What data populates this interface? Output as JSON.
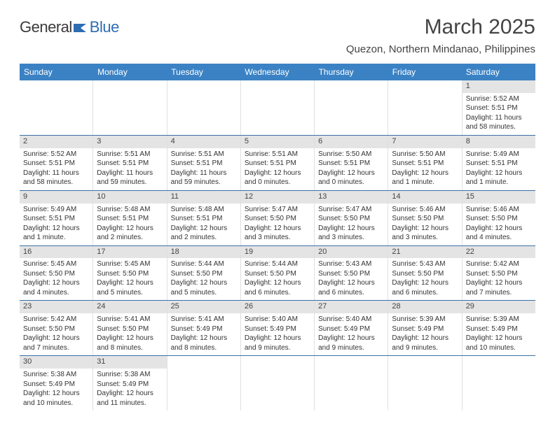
{
  "logo": {
    "text1": "General",
    "text2": "Blue"
  },
  "title": "March 2025",
  "location": "Quezon, Northern Mindanao, Philippines",
  "day_headers": [
    "Sunday",
    "Monday",
    "Tuesday",
    "Wednesday",
    "Thursday",
    "Friday",
    "Saturday"
  ],
  "colors": {
    "header_bg": "#3b82c4",
    "week_divider": "#3b6fa8",
    "daynum_bg": "#e4e4e4",
    "text": "#333333"
  },
  "weeks": [
    [
      {
        "day": null
      },
      {
        "day": null
      },
      {
        "day": null
      },
      {
        "day": null
      },
      {
        "day": null
      },
      {
        "day": null
      },
      {
        "day": 1,
        "sunrise": "Sunrise: 5:52 AM",
        "sunset": "Sunset: 5:51 PM",
        "daylight": "Daylight: 11 hours and 58 minutes."
      }
    ],
    [
      {
        "day": 2,
        "sunrise": "Sunrise: 5:52 AM",
        "sunset": "Sunset: 5:51 PM",
        "daylight": "Daylight: 11 hours and 58 minutes."
      },
      {
        "day": 3,
        "sunrise": "Sunrise: 5:51 AM",
        "sunset": "Sunset: 5:51 PM",
        "daylight": "Daylight: 11 hours and 59 minutes."
      },
      {
        "day": 4,
        "sunrise": "Sunrise: 5:51 AM",
        "sunset": "Sunset: 5:51 PM",
        "daylight": "Daylight: 11 hours and 59 minutes."
      },
      {
        "day": 5,
        "sunrise": "Sunrise: 5:51 AM",
        "sunset": "Sunset: 5:51 PM",
        "daylight": "Daylight: 12 hours and 0 minutes."
      },
      {
        "day": 6,
        "sunrise": "Sunrise: 5:50 AM",
        "sunset": "Sunset: 5:51 PM",
        "daylight": "Daylight: 12 hours and 0 minutes."
      },
      {
        "day": 7,
        "sunrise": "Sunrise: 5:50 AM",
        "sunset": "Sunset: 5:51 PM",
        "daylight": "Daylight: 12 hours and 1 minute."
      },
      {
        "day": 8,
        "sunrise": "Sunrise: 5:49 AM",
        "sunset": "Sunset: 5:51 PM",
        "daylight": "Daylight: 12 hours and 1 minute."
      }
    ],
    [
      {
        "day": 9,
        "sunrise": "Sunrise: 5:49 AM",
        "sunset": "Sunset: 5:51 PM",
        "daylight": "Daylight: 12 hours and 1 minute."
      },
      {
        "day": 10,
        "sunrise": "Sunrise: 5:48 AM",
        "sunset": "Sunset: 5:51 PM",
        "daylight": "Daylight: 12 hours and 2 minutes."
      },
      {
        "day": 11,
        "sunrise": "Sunrise: 5:48 AM",
        "sunset": "Sunset: 5:51 PM",
        "daylight": "Daylight: 12 hours and 2 minutes."
      },
      {
        "day": 12,
        "sunrise": "Sunrise: 5:47 AM",
        "sunset": "Sunset: 5:50 PM",
        "daylight": "Daylight: 12 hours and 3 minutes."
      },
      {
        "day": 13,
        "sunrise": "Sunrise: 5:47 AM",
        "sunset": "Sunset: 5:50 PM",
        "daylight": "Daylight: 12 hours and 3 minutes."
      },
      {
        "day": 14,
        "sunrise": "Sunrise: 5:46 AM",
        "sunset": "Sunset: 5:50 PM",
        "daylight": "Daylight: 12 hours and 3 minutes."
      },
      {
        "day": 15,
        "sunrise": "Sunrise: 5:46 AM",
        "sunset": "Sunset: 5:50 PM",
        "daylight": "Daylight: 12 hours and 4 minutes."
      }
    ],
    [
      {
        "day": 16,
        "sunrise": "Sunrise: 5:45 AM",
        "sunset": "Sunset: 5:50 PM",
        "daylight": "Daylight: 12 hours and 4 minutes."
      },
      {
        "day": 17,
        "sunrise": "Sunrise: 5:45 AM",
        "sunset": "Sunset: 5:50 PM",
        "daylight": "Daylight: 12 hours and 5 minutes."
      },
      {
        "day": 18,
        "sunrise": "Sunrise: 5:44 AM",
        "sunset": "Sunset: 5:50 PM",
        "daylight": "Daylight: 12 hours and 5 minutes."
      },
      {
        "day": 19,
        "sunrise": "Sunrise: 5:44 AM",
        "sunset": "Sunset: 5:50 PM",
        "daylight": "Daylight: 12 hours and 6 minutes."
      },
      {
        "day": 20,
        "sunrise": "Sunrise: 5:43 AM",
        "sunset": "Sunset: 5:50 PM",
        "daylight": "Daylight: 12 hours and 6 minutes."
      },
      {
        "day": 21,
        "sunrise": "Sunrise: 5:43 AM",
        "sunset": "Sunset: 5:50 PM",
        "daylight": "Daylight: 12 hours and 6 minutes."
      },
      {
        "day": 22,
        "sunrise": "Sunrise: 5:42 AM",
        "sunset": "Sunset: 5:50 PM",
        "daylight": "Daylight: 12 hours and 7 minutes."
      }
    ],
    [
      {
        "day": 23,
        "sunrise": "Sunrise: 5:42 AM",
        "sunset": "Sunset: 5:50 PM",
        "daylight": "Daylight: 12 hours and 7 minutes."
      },
      {
        "day": 24,
        "sunrise": "Sunrise: 5:41 AM",
        "sunset": "Sunset: 5:50 PM",
        "daylight": "Daylight: 12 hours and 8 minutes."
      },
      {
        "day": 25,
        "sunrise": "Sunrise: 5:41 AM",
        "sunset": "Sunset: 5:49 PM",
        "daylight": "Daylight: 12 hours and 8 minutes."
      },
      {
        "day": 26,
        "sunrise": "Sunrise: 5:40 AM",
        "sunset": "Sunset: 5:49 PM",
        "daylight": "Daylight: 12 hours and 9 minutes."
      },
      {
        "day": 27,
        "sunrise": "Sunrise: 5:40 AM",
        "sunset": "Sunset: 5:49 PM",
        "daylight": "Daylight: 12 hours and 9 minutes."
      },
      {
        "day": 28,
        "sunrise": "Sunrise: 5:39 AM",
        "sunset": "Sunset: 5:49 PM",
        "daylight": "Daylight: 12 hours and 9 minutes."
      },
      {
        "day": 29,
        "sunrise": "Sunrise: 5:39 AM",
        "sunset": "Sunset: 5:49 PM",
        "daylight": "Daylight: 12 hours and 10 minutes."
      }
    ],
    [
      {
        "day": 30,
        "sunrise": "Sunrise: 5:38 AM",
        "sunset": "Sunset: 5:49 PM",
        "daylight": "Daylight: 12 hours and 10 minutes."
      },
      {
        "day": 31,
        "sunrise": "Sunrise: 5:38 AM",
        "sunset": "Sunset: 5:49 PM",
        "daylight": "Daylight: 12 hours and 11 minutes."
      },
      {
        "day": null
      },
      {
        "day": null
      },
      {
        "day": null
      },
      {
        "day": null
      },
      {
        "day": null
      }
    ]
  ]
}
